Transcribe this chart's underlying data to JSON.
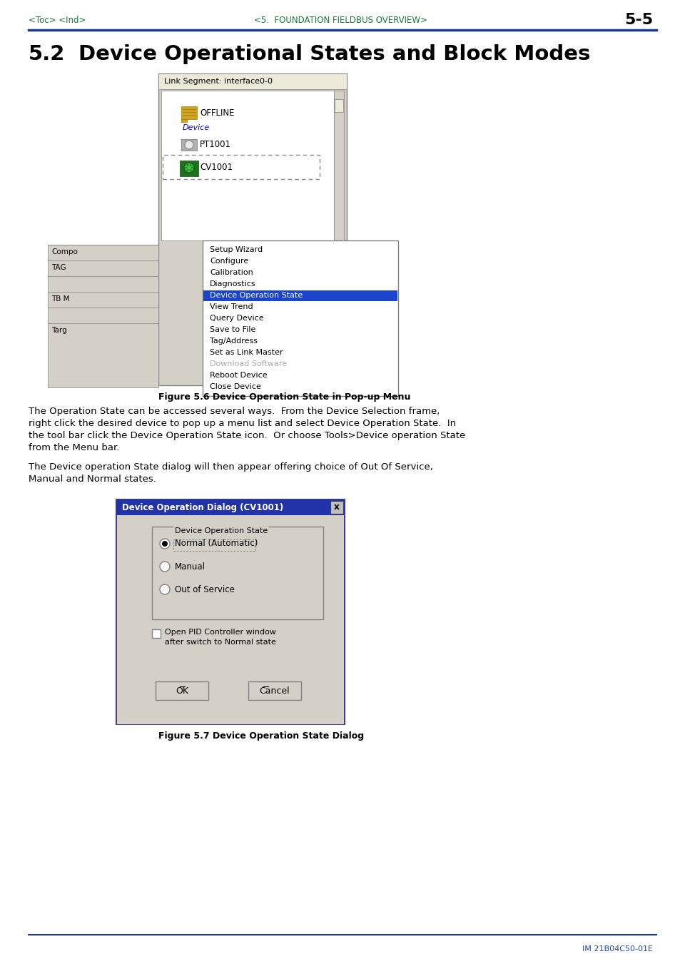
{
  "page_bg": "#ffffff",
  "header_line_color": "#1a3a8a",
  "header_text_color": "#1a7a3a",
  "header_left": "<Toc> <Ind>",
  "header_center": "<5.  FOUNDATION FIELDBUS OVERVIEW>",
  "header_right": "5-5",
  "header_right_color": "#000000",
  "section_title": "5.2   Device Operational States and Block Modes",
  "footer_text": "IM 21B04C50-01E",
  "footer_color": "#2244aa",
  "fig1_caption": "Figure 5.6 Device Operation State in Pop-up Menu",
  "fig2_caption": "Figure 5.7 Device Operation State Dialog",
  "para1_lines": [
    "The Operation State can be accessed several ways.  From the Device Selection frame,",
    "right click the desired device to pop up a menu list and select Device Operation State.  In",
    "the tool bar click the Device Operation State icon.  Or choose Tools>Device operation State",
    "from the Menu bar."
  ],
  "para2_lines": [
    "The Device operation State dialog will then appear offering choice of Out Of Service,",
    "Manual and Normal states."
  ],
  "menu_items": [
    "Setup Wizard",
    "Configure",
    "Calibration",
    "Diagnostics",
    "Device Operation State",
    "View Trend",
    "Query Device",
    "Save to File",
    "Tag/Address",
    "Set as Link Master",
    "Download Software",
    "Reboot Device",
    "Close Device"
  ],
  "highlight_idx": 4,
  "radio_items": [
    "Normal (Automatic)",
    "Manual",
    "Out of Service"
  ]
}
